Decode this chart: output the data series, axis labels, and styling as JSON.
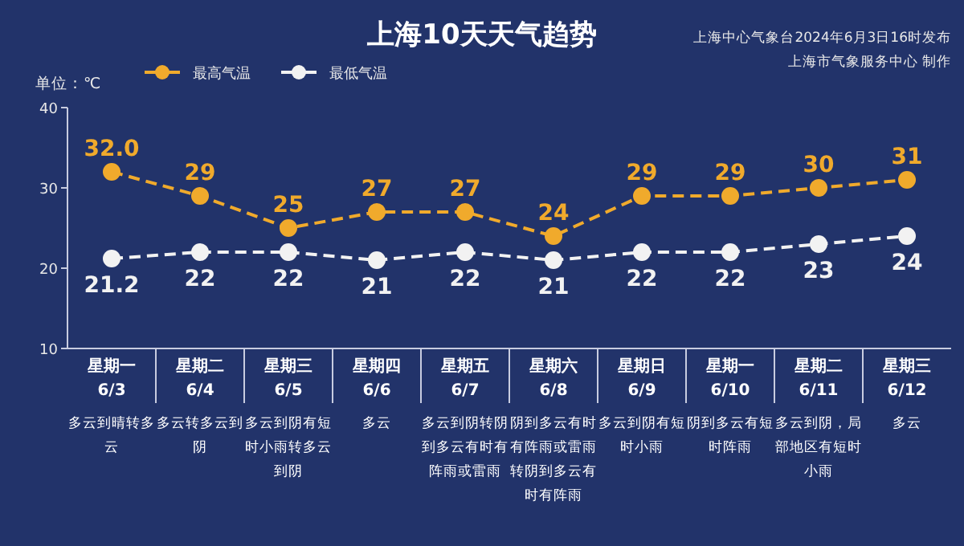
{
  "chart_data": {
    "type": "line",
    "title": "上海10天天气趋势",
    "ylabel": "单位：℃",
    "categories": [
      "星期一\n6/3",
      "星期二\n6/4",
      "星期三\n6/5",
      "星期四\n6/6",
      "星期五\n6/7",
      "星期六\n6/8",
      "星期日\n6/9",
      "星期一\n6/10",
      "星期二\n6/11",
      "星期三\n6/12"
    ],
    "series": [
      {
        "name": "最高气温",
        "color": "#f0aa2c",
        "values": [
          32,
          29,
          25,
          27,
          27,
          24,
          29,
          29,
          30,
          31
        ],
        "value_labels": [
          "32.0",
          "29",
          "25",
          "27",
          "27",
          "24",
          "29",
          "29",
          "30",
          "31"
        ]
      },
      {
        "name": "最低气温",
        "color": "#f2f2f2",
        "values": [
          21.2,
          22,
          22,
          21,
          22,
          21,
          22,
          22,
          23,
          24
        ],
        "value_labels": [
          "21.2",
          "22",
          "22",
          "21",
          "22",
          "21",
          "22",
          "22",
          "23",
          "24"
        ]
      }
    ],
    "ylim": [
      10,
      40
    ],
    "yticks": [
      10,
      20,
      30,
      40
    ],
    "grid": false,
    "legend": "top left",
    "marker": "circle",
    "line_style": "dashed",
    "annotations": [
      "上海中心气象台2024年6月3日16时发布",
      "上海市气象服务中心 制作",
      "多云到晴转多云",
      "多云转多云到阴",
      "多云到阴有短时小雨转多云到阴",
      "多云",
      "多云到阴转阴到多云有时有阵雨或雷雨",
      "阴到多云有时有阵雨或雷雨转阴到多云有时有阵雨",
      "多云到阴有短时小雨",
      "阴到多云有短时阵雨",
      "多云到阴，局部地区有短时小雨",
      "多云"
    ]
  }
}
